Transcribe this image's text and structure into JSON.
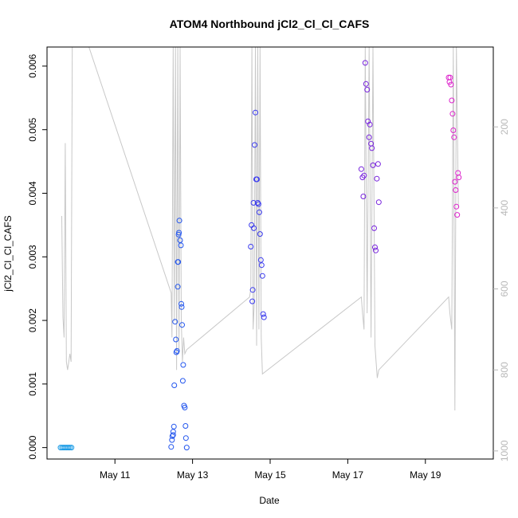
{
  "chart_data": {
    "type": "scatter",
    "title": "ATOM4 Northbound jCl2_Cl_Cl_CAFS",
    "xlabel": "Date",
    "ylabel": "jCl2_Cl_Cl_CAFS",
    "xlim": [
      9.25,
      20.75
    ],
    "ylim": [
      -0.00018,
      0.0063
    ],
    "x_ticks": [
      {
        "value": 11,
        "label": "May 11"
      },
      {
        "value": 13,
        "label": "May 13"
      },
      {
        "value": 15,
        "label": "May 15"
      },
      {
        "value": 17,
        "label": "May 17"
      },
      {
        "value": 19,
        "label": "May 19"
      }
    ],
    "y_ticks": [
      {
        "value": 0.0,
        "label": "0.000"
      },
      {
        "value": 0.001,
        "label": "0.001"
      },
      {
        "value": 0.002,
        "label": "0.002"
      },
      {
        "value": 0.003,
        "label": "0.003"
      },
      {
        "value": 0.004,
        "label": "0.004"
      },
      {
        "value": 0.005,
        "label": "0.005"
      },
      {
        "value": 0.006,
        "label": "0.006"
      }
    ],
    "secondary_axis": {
      "side": "right",
      "color": "#b8b8b8",
      "ticks": [
        {
          "value": 200,
          "label": "200"
        },
        {
          "value": 400,
          "label": "400"
        },
        {
          "value": 600,
          "label": "600"
        },
        {
          "value": 800,
          "label": "800"
        },
        {
          "value": 1000,
          "label": "1000"
        }
      ],
      "range_top": 2.8,
      "range_bottom": 1020
    },
    "secondary_series": {
      "color": "#c8c8c8",
      "x": [
        9.63,
        9.66,
        9.69,
        9.72,
        9.75,
        9.78,
        9.81,
        9.84,
        9.87,
        9.9,
        10.33,
        12.45,
        12.47,
        12.5,
        12.53,
        12.56,
        12.59,
        12.62,
        12.65,
        12.68,
        12.71,
        12.74,
        12.77,
        12.8,
        12.85,
        14.47,
        14.5,
        14.53,
        14.56,
        14.59,
        14.62,
        14.65,
        14.68,
        14.71,
        14.74,
        14.77,
        14.8,
        17.35,
        17.38,
        17.42,
        17.45,
        17.5,
        17.55,
        17.6,
        17.65,
        17.7,
        17.76,
        17.8,
        19.6,
        19.63,
        19.68,
        19.72,
        19.76,
        19.8,
        19.85
      ],
      "y": [
        420,
        670,
        720,
        240,
        780,
        800,
        780,
        760,
        780,
        2,
        2,
        610,
        720,
        2,
        680,
        2,
        800,
        2,
        760,
        2,
        680,
        780,
        720,
        760,
        750,
        620,
        600,
        2,
        700,
        640,
        2,
        740,
        2,
        700,
        2,
        720,
        810,
        620,
        660,
        700,
        2,
        660,
        2,
        720,
        2,
        740,
        820,
        800,
        620,
        660,
        700,
        2,
        900,
        2,
        400
      ]
    },
    "series": [
      {
        "color": "#1a9be6",
        "x": [
          9.6,
          9.64,
          9.68,
          9.72,
          9.76,
          9.8,
          9.84,
          9.88
        ],
        "y": [
          0.0,
          0.0,
          0.0,
          0.0,
          0.0,
          0.0,
          0.0,
          0.0
        ]
      },
      {
        "color": "#2255ee",
        "x": [
          12.45,
          12.47,
          12.48,
          12.5,
          12.5,
          12.52,
          12.53,
          12.55,
          12.57,
          12.58,
          12.6,
          12.62,
          12.62,
          12.63,
          12.64,
          12.65,
          12.66,
          12.68,
          12.7,
          12.71,
          12.72,
          12.73,
          12.75,
          12.76,
          12.78,
          12.8,
          12.82,
          12.83,
          12.85
        ],
        "y": [
          1e-05,
          0.00012,
          0.00018,
          0.00025,
          0.0002,
          0.00033,
          0.00098,
          0.00198,
          0.0017,
          0.0015,
          0.00152,
          0.00292,
          0.00253,
          0.00292,
          0.00335,
          0.00338,
          0.00357,
          0.00326,
          0.00318,
          0.00226,
          0.00221,
          0.00193,
          0.00105,
          0.0013,
          0.00066,
          0.00063,
          0.00034,
          0.00015,
          0.0
        ]
      },
      {
        "color": "#3a3aee",
        "x": [
          14.5,
          14.52,
          14.54,
          14.55,
          14.57,
          14.58,
          14.6,
          14.62,
          14.64,
          14.66,
          14.68,
          14.7,
          14.72,
          14.74,
          14.76,
          14.78,
          14.8,
          14.82,
          14.84
        ],
        "y": [
          0.00316,
          0.0035,
          0.0023,
          0.00248,
          0.00385,
          0.00345,
          0.00476,
          0.00527,
          0.00422,
          0.00422,
          0.00385,
          0.00383,
          0.0037,
          0.00336,
          0.00295,
          0.00287,
          0.0027,
          0.0021,
          0.00205
        ]
      },
      {
        "color": "#7722dd",
        "x": [
          17.35,
          17.38,
          17.4,
          17.42,
          17.45,
          17.47,
          17.5,
          17.52,
          17.55,
          17.57,
          17.6,
          17.62,
          17.65,
          17.68,
          17.7,
          17.72,
          17.75,
          17.78,
          17.8
        ],
        "y": [
          0.00438,
          0.00425,
          0.00395,
          0.00428,
          0.00605,
          0.00572,
          0.00563,
          0.00513,
          0.00488,
          0.00508,
          0.00478,
          0.00471,
          0.00444,
          0.00345,
          0.00315,
          0.0031,
          0.00423,
          0.00446,
          0.00386
        ]
      },
      {
        "color": "#dd22cc",
        "x": [
          19.6,
          19.62,
          19.64,
          19.66,
          19.68,
          19.7,
          19.72,
          19.74,
          19.76,
          19.78,
          19.8,
          19.82,
          19.84,
          19.86
        ],
        "y": [
          0.00582,
          0.00575,
          0.00582,
          0.00571,
          0.00546,
          0.00525,
          0.00499,
          0.00488,
          0.00418,
          0.00405,
          0.00379,
          0.00366,
          0.00432,
          0.00425
        ]
      }
    ],
    "grid": false,
    "legend": "none"
  }
}
